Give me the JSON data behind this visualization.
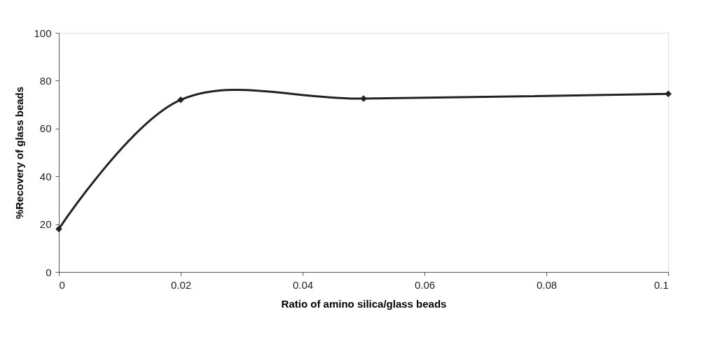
{
  "chart_data": {
    "type": "line",
    "xlabel": "Ratio of amino silica/glass beads",
    "ylabel": "%Recovery of glass beads",
    "x": [
      0,
      0.02,
      0.05,
      0.1
    ],
    "series": [
      {
        "color": "#222222",
        "values": [
          18,
          72,
          72.5,
          74.5
        ]
      }
    ],
    "xlim": [
      0,
      0.1
    ],
    "xticks": [
      0,
      0.02,
      0.04,
      0.06,
      0.08,
      0.1
    ],
    "ylim": [
      0,
      100
    ],
    "yticks": [
      0,
      20,
      40,
      60,
      80,
      100
    ],
    "grid": false,
    "legend": false,
    "marker": "diamond",
    "line_style": "solid"
  }
}
